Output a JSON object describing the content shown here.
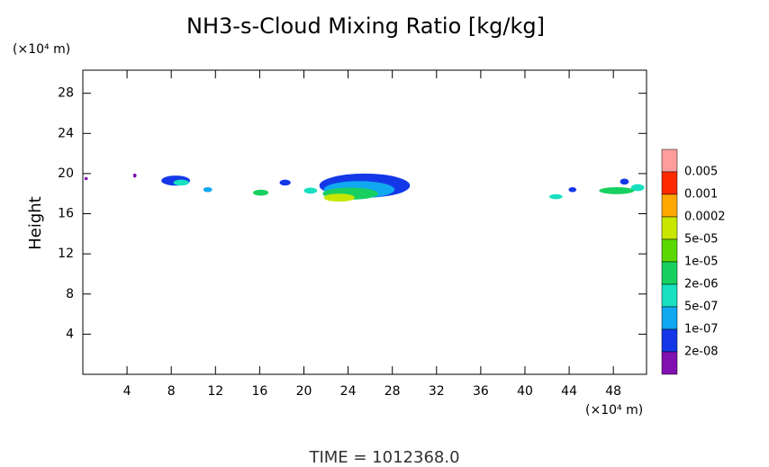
{
  "chart_data": {
    "type": "contour",
    "title": "NH3-s-Cloud Mixing Ratio [kg/kg]",
    "y_unit_label": "(×10⁴ m)",
    "x_unit_label": "(×10⁴ m)",
    "ylabel": "Height",
    "footer": "TIME = 1012368.0",
    "xlim": [
      0,
      51
    ],
    "ylim": [
      0,
      30.3
    ],
    "xticks": [
      4,
      8,
      12,
      16,
      20,
      24,
      28,
      32,
      36,
      40,
      44,
      48
    ],
    "yticks": [
      4,
      8,
      12,
      16,
      20,
      24,
      28
    ],
    "colorbar": {
      "colors": [
        "#ff9c9c",
        "#ff2a00",
        "#ffa800",
        "#c8e600",
        "#5ad800",
        "#18d060",
        "#18e0c0",
        "#10a8f0",
        "#1438e8",
        "#8010b0"
      ],
      "labels": [
        "0.005",
        "0.001",
        "0.0002",
        "5e-05",
        "1e-05",
        "2e-06",
        "5e-07",
        "1e-07",
        "2e-08"
      ]
    },
    "regions": [
      {
        "x": 25.5,
        "y": 18.8,
        "rx": 4.1,
        "ry": 1.2,
        "level": 8
      },
      {
        "x": 25.0,
        "y": 18.4,
        "rx": 3.2,
        "ry": 0.85,
        "level": 7
      },
      {
        "x": 24.2,
        "y": 18.0,
        "rx": 2.5,
        "ry": 0.6,
        "level": 5
      },
      {
        "x": 23.2,
        "y": 17.6,
        "rx": 1.4,
        "ry": 0.4,
        "level": 3
      },
      {
        "x": 8.4,
        "y": 19.3,
        "rx": 1.3,
        "ry": 0.5,
        "level": 8
      },
      {
        "x": 8.9,
        "y": 19.1,
        "rx": 0.7,
        "ry": 0.3,
        "level": 6
      },
      {
        "x": 11.3,
        "y": 18.4,
        "rx": 0.4,
        "ry": 0.25,
        "level": 7
      },
      {
        "x": 16.1,
        "y": 18.1,
        "rx": 0.7,
        "ry": 0.3,
        "level": 5
      },
      {
        "x": 18.3,
        "y": 19.1,
        "rx": 0.5,
        "ry": 0.3,
        "level": 8
      },
      {
        "x": 20.6,
        "y": 18.3,
        "rx": 0.6,
        "ry": 0.3,
        "level": 6
      },
      {
        "x": 42.8,
        "y": 17.7,
        "rx": 0.6,
        "ry": 0.25,
        "level": 6
      },
      {
        "x": 44.3,
        "y": 18.4,
        "rx": 0.35,
        "ry": 0.25,
        "level": 8
      },
      {
        "x": 48.3,
        "y": 18.3,
        "rx": 1.6,
        "ry": 0.35,
        "level": 5
      },
      {
        "x": 49.0,
        "y": 19.2,
        "rx": 0.4,
        "ry": 0.3,
        "level": 8
      },
      {
        "x": 50.2,
        "y": 18.6,
        "rx": 0.6,
        "ry": 0.35,
        "level": 6
      },
      {
        "x": 4.7,
        "y": 19.8,
        "rx": 0.15,
        "ry": 0.2,
        "level": 9
      },
      {
        "x": 0.3,
        "y": 19.5,
        "rx": 0.15,
        "ry": 0.15,
        "level": 9
      }
    ]
  }
}
